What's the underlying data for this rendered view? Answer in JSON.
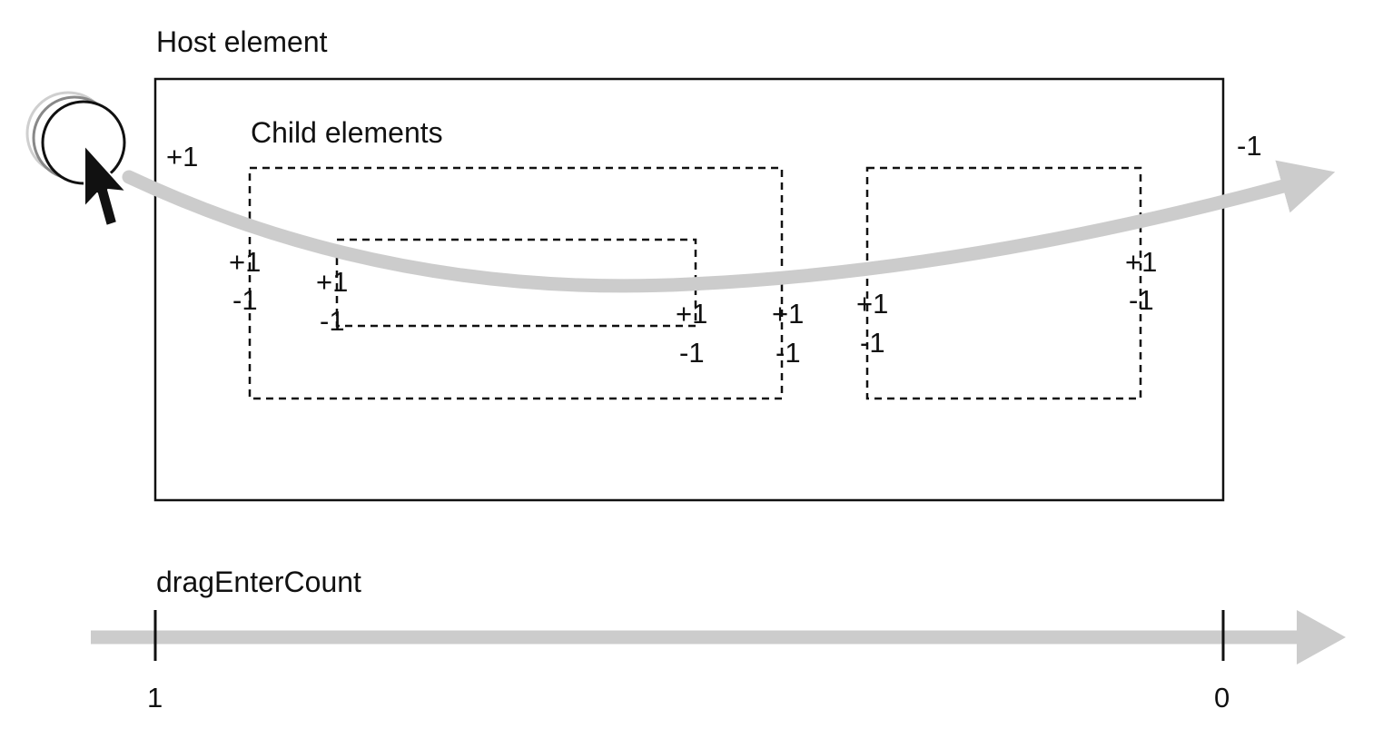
{
  "host": {
    "label": "Host element"
  },
  "children": {
    "label": "Child elements"
  },
  "counter": {
    "label": "dragEnterCount",
    "start_value": "1",
    "end_value": "0"
  },
  "events": {
    "host_enter": "+1",
    "host_leave": "-1",
    "child1_enter": "+1",
    "child1_leave": "-1",
    "child1b_enter": "+1",
    "child1b_leave": "-1",
    "child2_enter": "+1",
    "child2_leave": "-1",
    "child2b_enter": "+1",
    "child2b_leave": "-1",
    "child3_enter": "+1",
    "child3_leave": "-1",
    "child3b_enter": "+1",
    "child3b_leave": "-1"
  },
  "colors": {
    "path": "#cccccc",
    "stroke": "#111111",
    "background": "#ffffff"
  },
  "icons": {
    "cursor": "arrow-cursor-icon",
    "drag_source": "drag-circle-icon"
  }
}
